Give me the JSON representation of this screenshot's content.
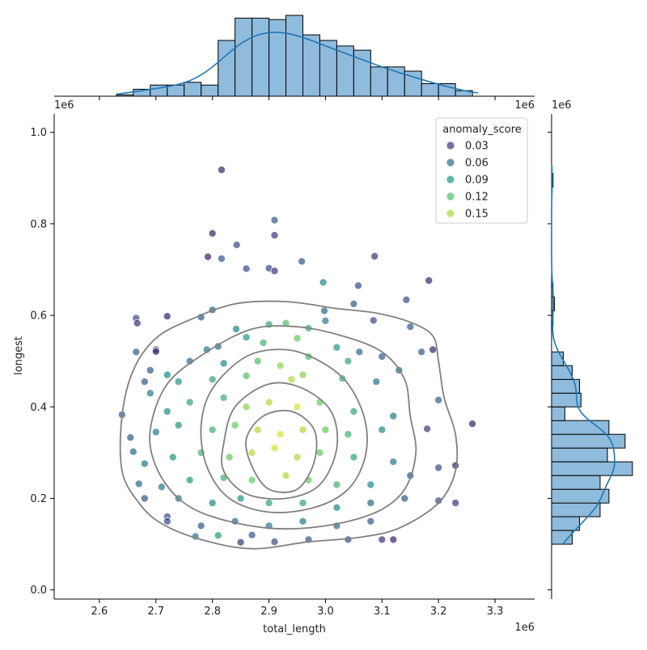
{
  "chart_data": {
    "type": "scatter",
    "xlabel": "total_length",
    "ylabel": "longest",
    "x_offset_label": "1e6",
    "y_offset_label": "1e6",
    "xlim": [
      2.52,
      3.37
    ],
    "ylim": [
      -0.02,
      1.04
    ],
    "x_ticks": [
      2.6,
      2.7,
      2.8,
      2.9,
      3.0,
      3.1,
      3.2,
      3.3
    ],
    "x_tick_labels": [
      "2.6",
      "2.7",
      "2.8",
      "2.9",
      "3.0",
      "3.1",
      "3.2",
      "3.3"
    ],
    "y_ticks": [
      0.0,
      0.2,
      0.4,
      0.6,
      0.8,
      1.0
    ],
    "y_tick_labels": [
      "0.0",
      "0.2",
      "0.4",
      "0.6",
      "0.8",
      "1.0"
    ],
    "hue_variable": "anomaly_score",
    "legend": {
      "title": "anomaly_score",
      "placement": "top-right",
      "entries": [
        {
          "label": "0.03",
          "value": 0.03
        },
        {
          "label": "0.06",
          "value": 0.06
        },
        {
          "label": "0.09",
          "value": 0.09
        },
        {
          "label": "0.12",
          "value": 0.12
        },
        {
          "label": "0.15",
          "value": 0.15
        }
      ]
    },
    "colormap": "viridis",
    "hue_range": [
      0.0,
      0.17
    ],
    "points": [
      [
        2.816,
        0.918,
        0.02
      ],
      [
        2.91,
        0.808,
        0.05
      ],
      [
        2.91,
        0.775,
        0.03
      ],
      [
        2.8,
        0.779,
        0.02
      ],
      [
        2.843,
        0.754,
        0.04
      ],
      [
        2.816,
        0.724,
        0.05
      ],
      [
        2.792,
        0.728,
        0.02
      ],
      [
        3.087,
        0.729,
        0.03
      ],
      [
        2.958,
        0.718,
        0.05
      ],
      [
        2.86,
        0.702,
        0.04
      ],
      [
        2.9,
        0.703,
        0.04
      ],
      [
        2.91,
        0.697,
        0.03
      ],
      [
        3.183,
        0.676,
        0.02
      ],
      [
        2.996,
        0.672,
        0.08
      ],
      [
        3.058,
        0.665,
        0.04
      ],
      [
        3.143,
        0.634,
        0.04
      ],
      [
        2.665,
        0.594,
        0.04
      ],
      [
        2.667,
        0.583,
        0.03
      ],
      [
        2.72,
        0.598,
        0.02
      ],
      [
        2.78,
        0.596,
        0.05
      ],
      [
        2.998,
        0.61,
        0.06
      ],
      [
        3.05,
        0.625,
        0.05
      ],
      [
        3.085,
        0.589,
        0.04
      ],
      [
        2.8,
        0.612,
        0.06
      ],
      [
        2.842,
        0.57,
        0.08
      ],
      [
        2.9,
        0.58,
        0.1
      ],
      [
        2.93,
        0.583,
        0.12
      ],
      [
        2.97,
        0.572,
        0.11
      ],
      [
        3.0,
        0.588,
        0.07
      ],
      [
        3.15,
        0.575,
        0.05
      ],
      [
        2.665,
        0.52,
        0.05
      ],
      [
        2.7,
        0.525,
        0.04
      ],
      [
        2.7,
        0.521,
        0.02
      ],
      [
        2.76,
        0.5,
        0.06
      ],
      [
        2.79,
        0.525,
        0.07
      ],
      [
        2.81,
        0.532,
        0.06
      ],
      [
        2.86,
        0.552,
        0.09
      ],
      [
        2.89,
        0.54,
        0.11
      ],
      [
        2.95,
        0.55,
        0.13
      ],
      [
        3.02,
        0.53,
        0.09
      ],
      [
        3.06,
        0.52,
        0.06
      ],
      [
        3.1,
        0.51,
        0.05
      ],
      [
        3.17,
        0.52,
        0.05
      ],
      [
        3.19,
        0.525,
        0.02
      ],
      [
        2.69,
        0.48,
        0.05
      ],
      [
        2.72,
        0.47,
        0.08
      ],
      [
        2.82,
        0.495,
        0.08
      ],
      [
        2.88,
        0.5,
        0.12
      ],
      [
        2.92,
        0.49,
        0.14
      ],
      [
        2.97,
        0.51,
        0.12
      ],
      [
        3.04,
        0.5,
        0.1
      ],
      [
        3.13,
        0.48,
        0.06
      ],
      [
        2.68,
        0.455,
        0.05
      ],
      [
        2.74,
        0.455,
        0.09
      ],
      [
        2.8,
        0.46,
        0.1
      ],
      [
        2.86,
        0.468,
        0.12
      ],
      [
        2.94,
        0.46,
        0.15
      ],
      [
        2.96,
        0.47,
        0.14
      ],
      [
        3.03,
        0.462,
        0.11
      ],
      [
        3.09,
        0.455,
        0.07
      ],
      [
        2.64,
        0.383,
        0.05
      ],
      [
        2.655,
        0.333,
        0.05
      ],
      [
        2.69,
        0.43,
        0.07
      ],
      [
        2.72,
        0.39,
        0.08
      ],
      [
        2.76,
        0.41,
        0.1
      ],
      [
        2.82,
        0.42,
        0.11
      ],
      [
        2.86,
        0.4,
        0.14
      ],
      [
        2.9,
        0.41,
        0.15
      ],
      [
        2.95,
        0.4,
        0.16
      ],
      [
        2.99,
        0.41,
        0.13
      ],
      [
        3.05,
        0.39,
        0.1
      ],
      [
        3.12,
        0.38,
        0.07
      ],
      [
        3.2,
        0.415,
        0.05
      ],
      [
        3.18,
        0.352,
        0.03
      ],
      [
        2.7,
        0.345,
        0.07
      ],
      [
        2.74,
        0.36,
        0.09
      ],
      [
        2.8,
        0.35,
        0.11
      ],
      [
        2.84,
        0.36,
        0.13
      ],
      [
        2.88,
        0.35,
        0.15
      ],
      [
        2.92,
        0.34,
        0.16
      ],
      [
        2.96,
        0.35,
        0.15
      ],
      [
        3.0,
        0.35,
        0.13
      ],
      [
        3.04,
        0.34,
        0.11
      ],
      [
        3.1,
        0.35,
        0.08
      ],
      [
        3.26,
        0.363,
        0.02
      ],
      [
        2.66,
        0.302,
        0.06
      ],
      [
        2.68,
        0.276,
        0.07
      ],
      [
        2.73,
        0.29,
        0.09
      ],
      [
        2.78,
        0.3,
        0.11
      ],
      [
        2.83,
        0.29,
        0.13
      ],
      [
        2.87,
        0.3,
        0.15
      ],
      [
        2.91,
        0.31,
        0.16
      ],
      [
        2.95,
        0.29,
        0.15
      ],
      [
        2.99,
        0.3,
        0.13
      ],
      [
        3.05,
        0.29,
        0.1
      ],
      [
        3.12,
        0.28,
        0.07
      ],
      [
        3.2,
        0.267,
        0.04
      ],
      [
        3.23,
        0.272,
        0.02
      ],
      [
        2.67,
        0.232,
        0.06
      ],
      [
        2.71,
        0.225,
        0.07
      ],
      [
        2.76,
        0.24,
        0.09
      ],
      [
        2.82,
        0.245,
        0.11
      ],
      [
        2.87,
        0.24,
        0.13
      ],
      [
        2.93,
        0.25,
        0.15
      ],
      [
        2.97,
        0.24,
        0.13
      ],
      [
        3.02,
        0.23,
        0.11
      ],
      [
        3.08,
        0.23,
        0.08
      ],
      [
        3.15,
        0.25,
        0.05
      ],
      [
        2.68,
        0.2,
        0.05
      ],
      [
        2.72,
        0.16,
        0.04
      ],
      [
        2.74,
        0.2,
        0.07
      ],
      [
        2.8,
        0.19,
        0.08
      ],
      [
        2.85,
        0.2,
        0.09
      ],
      [
        2.9,
        0.19,
        0.1
      ],
      [
        2.96,
        0.19,
        0.1
      ],
      [
        3.02,
        0.18,
        0.08
      ],
      [
        3.08,
        0.19,
        0.06
      ],
      [
        3.14,
        0.2,
        0.05
      ],
      [
        3.2,
        0.195,
        0.04
      ],
      [
        3.23,
        0.19,
        0.03
      ],
      [
        2.72,
        0.15,
        0.04
      ],
      [
        2.78,
        0.14,
        0.05
      ],
      [
        2.84,
        0.15,
        0.06
      ],
      [
        2.9,
        0.14,
        0.07
      ],
      [
        2.96,
        0.15,
        0.07
      ],
      [
        3.02,
        0.14,
        0.06
      ],
      [
        3.08,
        0.15,
        0.05
      ],
      [
        3.12,
        0.11,
        0.02
      ],
      [
        2.77,
        0.117,
        0.07
      ],
      [
        2.85,
        0.104,
        0.03
      ],
      [
        2.91,
        0.105,
        0.04
      ],
      [
        2.97,
        0.11,
        0.05
      ],
      [
        3.04,
        0.11,
        0.04
      ],
      [
        3.1,
        0.11,
        0.03
      ],
      [
        2.81,
        0.119,
        0.09
      ],
      [
        2.87,
        0.12,
        0.05
      ]
    ],
    "contours": [
      {
        "level": 1,
        "points": [
          [
            2.64,
            0.38
          ],
          [
            2.66,
            0.48
          ],
          [
            2.7,
            0.55
          ],
          [
            2.76,
            0.59
          ],
          [
            2.84,
            0.625
          ],
          [
            2.93,
            0.63
          ],
          [
            3.02,
            0.615
          ],
          [
            3.09,
            0.605
          ],
          [
            3.15,
            0.585
          ],
          [
            3.19,
            0.555
          ],
          [
            3.2,
            0.5
          ],
          [
            3.21,
            0.42
          ],
          [
            3.23,
            0.34
          ],
          [
            3.23,
            0.26
          ],
          [
            3.2,
            0.19
          ],
          [
            3.13,
            0.135
          ],
          [
            3.06,
            0.115
          ],
          [
            2.97,
            0.105
          ],
          [
            2.87,
            0.09
          ],
          [
            2.78,
            0.11
          ],
          [
            2.71,
            0.145
          ],
          [
            2.67,
            0.19
          ],
          [
            2.64,
            0.26
          ]
        ]
      },
      {
        "level": 2,
        "points": [
          [
            2.69,
            0.35
          ],
          [
            2.72,
            0.45
          ],
          [
            2.79,
            0.52
          ],
          [
            2.87,
            0.57
          ],
          [
            2.95,
            0.575
          ],
          [
            3.03,
            0.555
          ],
          [
            3.1,
            0.52
          ],
          [
            3.14,
            0.46
          ],
          [
            3.15,
            0.38
          ],
          [
            3.16,
            0.3
          ],
          [
            3.14,
            0.22
          ],
          [
            3.09,
            0.17
          ],
          [
            3.0,
            0.14
          ],
          [
            2.9,
            0.135
          ],
          [
            2.8,
            0.16
          ],
          [
            2.74,
            0.2
          ],
          [
            2.7,
            0.27
          ]
        ]
      },
      {
        "level": 3,
        "points": [
          [
            2.78,
            0.36
          ],
          [
            2.8,
            0.44
          ],
          [
            2.86,
            0.51
          ],
          [
            2.93,
            0.525
          ],
          [
            2.99,
            0.5
          ],
          [
            3.04,
            0.45
          ],
          [
            3.07,
            0.37
          ],
          [
            3.07,
            0.29
          ],
          [
            3.04,
            0.22
          ],
          [
            2.98,
            0.18
          ],
          [
            2.9,
            0.17
          ],
          [
            2.83,
            0.2
          ],
          [
            2.79,
            0.27
          ]
        ]
      },
      {
        "level": 4,
        "points": [
          [
            2.82,
            0.32
          ],
          [
            2.84,
            0.4
          ],
          [
            2.9,
            0.45
          ],
          [
            2.96,
            0.44
          ],
          [
            3.01,
            0.39
          ],
          [
            3.02,
            0.31
          ],
          [
            2.99,
            0.23
          ],
          [
            2.93,
            0.2
          ],
          [
            2.86,
            0.21
          ],
          [
            2.82,
            0.26
          ]
        ]
      },
      {
        "level": 5,
        "points": [
          [
            2.86,
            0.33
          ],
          [
            2.89,
            0.38
          ],
          [
            2.94,
            0.39
          ],
          [
            2.98,
            0.35
          ],
          [
            2.98,
            0.28
          ],
          [
            2.95,
            0.22
          ],
          [
            2.9,
            0.22
          ],
          [
            2.87,
            0.27
          ]
        ]
      }
    ],
    "marginal_x": {
      "bins": [
        2.63,
        2.66,
        2.69,
        2.72,
        2.75,
        2.78,
        2.81,
        2.84,
        2.87,
        2.9,
        2.93,
        2.96,
        2.99,
        3.02,
        3.05,
        3.08,
        3.11,
        3.14,
        3.17,
        3.2,
        3.23,
        3.26
      ],
      "counts": [
        1,
        5,
        8,
        8,
        10,
        8,
        40,
        56,
        56,
        55,
        58,
        44,
        40,
        36,
        33,
        21,
        21,
        18,
        9,
        9,
        4
      ]
    },
    "marginal_y": {
      "bins": [
        0.1,
        0.13,
        0.16,
        0.19,
        0.22,
        0.25,
        0.28,
        0.31,
        0.34,
        0.37,
        0.4,
        0.43,
        0.46,
        0.49,
        0.52,
        0.55,
        0.58,
        0.61,
        0.64,
        0.67,
        0.7,
        0.73,
        0.76,
        0.79,
        0.82,
        0.85,
        0.88,
        0.91
      ],
      "counts": [
        14,
        19,
        33,
        39,
        33,
        55,
        38,
        50,
        39,
        9,
        20,
        19,
        14,
        8,
        0,
        0,
        1,
        2,
        1,
        0,
        0,
        0,
        0,
        0,
        0,
        0,
        1
      ]
    }
  }
}
